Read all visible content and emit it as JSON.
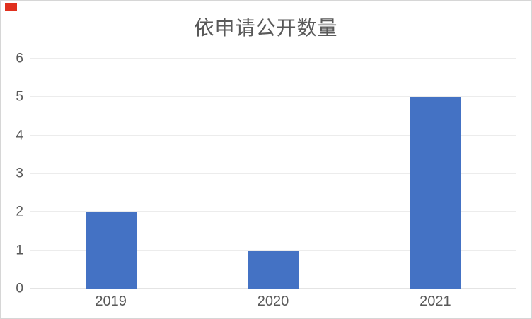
{
  "page": {
    "background": "#ffffff",
    "border_color": "#d6d6d6",
    "corner_marker_color": "#e0301e"
  },
  "chart_data": {
    "type": "bar",
    "title": "依申请公开数量",
    "categories": [
      "2019",
      "2020",
      "2021"
    ],
    "values": [
      2,
      1,
      5
    ],
    "series_color": "#4472c4",
    "ylim": [
      0,
      6
    ],
    "ytick_step": 1,
    "yticks": [
      "0",
      "1",
      "2",
      "3",
      "4",
      "5",
      "6"
    ],
    "grid": true,
    "gridline_color": "#d9d9d9",
    "axis_line_color": "#c9c9c9",
    "text_color": "#595959",
    "legend": "none",
    "xlabel": "",
    "ylabel": ""
  }
}
